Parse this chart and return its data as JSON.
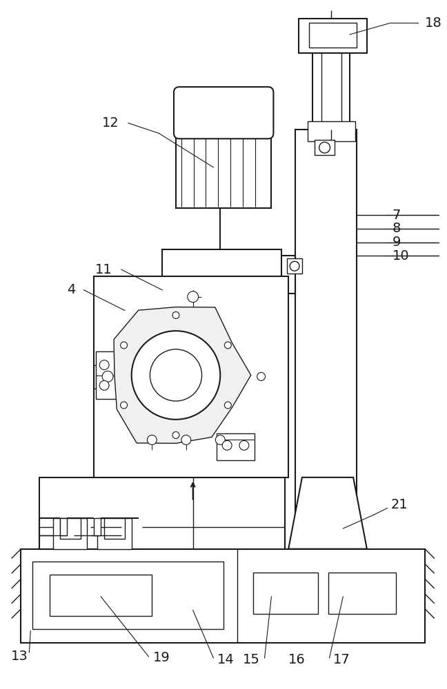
{
  "bg_color": "#ffffff",
  "line_color": "#1a1a1a",
  "figsize": [
    6.48,
    10.0
  ],
  "dpi": 100,
  "label_fontsize": 14
}
